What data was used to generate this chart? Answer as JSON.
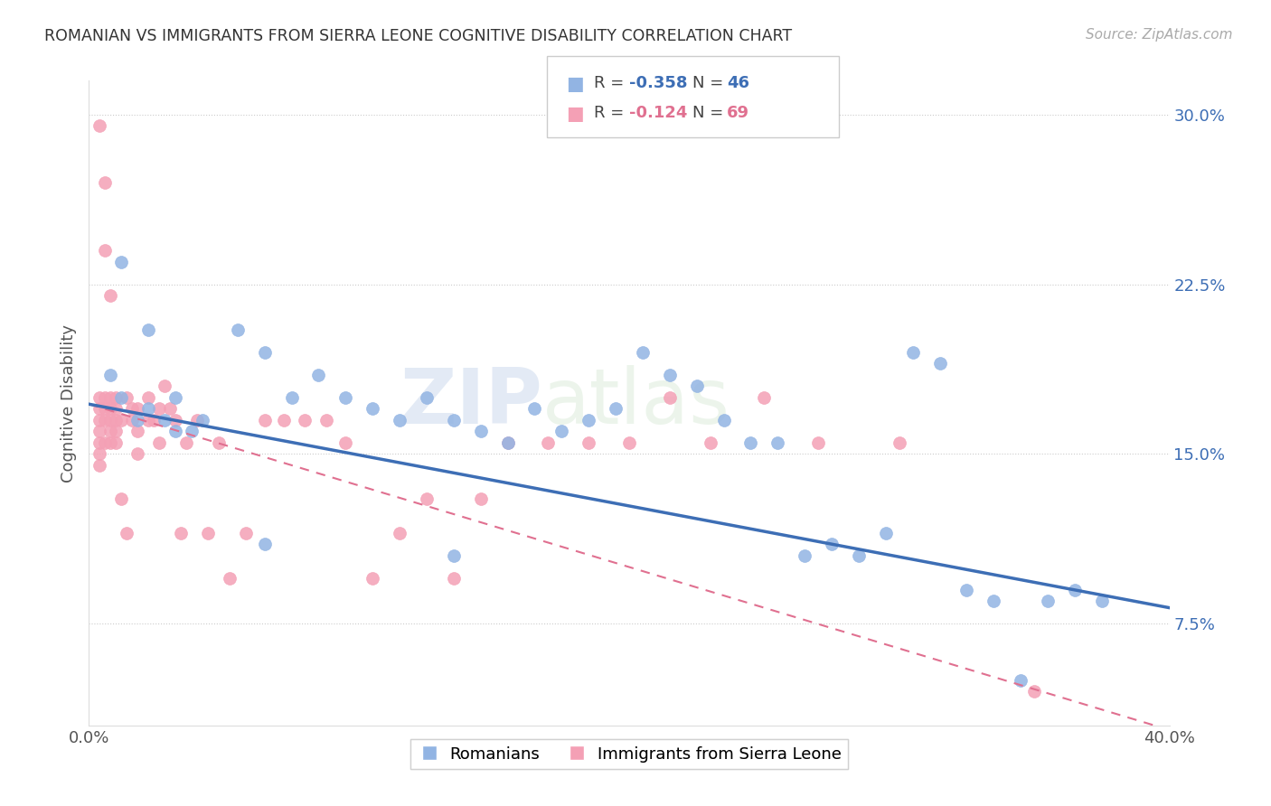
{
  "title": "ROMANIAN VS IMMIGRANTS FROM SIERRA LEONE COGNITIVE DISABILITY CORRELATION CHART",
  "source": "Source: ZipAtlas.com",
  "ylabel": "Cognitive Disability",
  "xlim": [
    0.0,
    0.4
  ],
  "ylim": [
    0.03,
    0.315
  ],
  "yticks": [
    0.075,
    0.15,
    0.225,
    0.3
  ],
  "ytick_labels": [
    "7.5%",
    "15.0%",
    "22.5%",
    "30.0%"
  ],
  "xticks": [
    0.0,
    0.08,
    0.16,
    0.24,
    0.32,
    0.4
  ],
  "blue_color": "#92b4e3",
  "pink_color": "#f4a0b5",
  "blue_line_color": "#3d6eb5",
  "pink_line_color": "#e07090",
  "watermark_zip": "ZIP",
  "watermark_atlas": "atlas",
  "blue_scatter_x": [
    0.008,
    0.012,
    0.018,
    0.022,
    0.028,
    0.032,
    0.038,
    0.042,
    0.055,
    0.065,
    0.075,
    0.085,
    0.095,
    0.105,
    0.115,
    0.125,
    0.135,
    0.145,
    0.155,
    0.165,
    0.175,
    0.185,
    0.195,
    0.205,
    0.215,
    0.225,
    0.235,
    0.245,
    0.255,
    0.265,
    0.275,
    0.285,
    0.295,
    0.305,
    0.315,
    0.325,
    0.335,
    0.345,
    0.355,
    0.365,
    0.375,
    0.012,
    0.022,
    0.032,
    0.065,
    0.135
  ],
  "blue_scatter_y": [
    0.185,
    0.175,
    0.165,
    0.17,
    0.165,
    0.175,
    0.16,
    0.165,
    0.205,
    0.195,
    0.175,
    0.185,
    0.175,
    0.17,
    0.165,
    0.175,
    0.165,
    0.16,
    0.155,
    0.17,
    0.16,
    0.165,
    0.17,
    0.195,
    0.185,
    0.18,
    0.165,
    0.155,
    0.155,
    0.105,
    0.11,
    0.105,
    0.115,
    0.195,
    0.19,
    0.09,
    0.085,
    0.05,
    0.085,
    0.09,
    0.085,
    0.235,
    0.205,
    0.16,
    0.11,
    0.105
  ],
  "pink_scatter_x": [
    0.004,
    0.004,
    0.004,
    0.004,
    0.004,
    0.004,
    0.004,
    0.004,
    0.006,
    0.006,
    0.006,
    0.006,
    0.006,
    0.006,
    0.008,
    0.008,
    0.008,
    0.008,
    0.008,
    0.008,
    0.01,
    0.01,
    0.01,
    0.01,
    0.01,
    0.012,
    0.012,
    0.014,
    0.014,
    0.016,
    0.016,
    0.018,
    0.018,
    0.018,
    0.022,
    0.022,
    0.024,
    0.026,
    0.026,
    0.028,
    0.03,
    0.032,
    0.034,
    0.036,
    0.04,
    0.044,
    0.048,
    0.052,
    0.058,
    0.065,
    0.072,
    0.08,
    0.088,
    0.095,
    0.105,
    0.115,
    0.125,
    0.135,
    0.145,
    0.155,
    0.17,
    0.185,
    0.2,
    0.215,
    0.23,
    0.25,
    0.27,
    0.3,
    0.35
  ],
  "pink_scatter_y": [
    0.295,
    0.175,
    0.17,
    0.165,
    0.16,
    0.155,
    0.15,
    0.145,
    0.27,
    0.24,
    0.175,
    0.17,
    0.165,
    0.155,
    0.22,
    0.175,
    0.17,
    0.165,
    0.16,
    0.155,
    0.175,
    0.17,
    0.165,
    0.16,
    0.155,
    0.165,
    0.13,
    0.175,
    0.115,
    0.17,
    0.165,
    0.17,
    0.16,
    0.15,
    0.175,
    0.165,
    0.165,
    0.17,
    0.155,
    0.18,
    0.17,
    0.165,
    0.115,
    0.155,
    0.165,
    0.115,
    0.155,
    0.095,
    0.115,
    0.165,
    0.165,
    0.165,
    0.165,
    0.155,
    0.095,
    0.115,
    0.13,
    0.095,
    0.13,
    0.155,
    0.155,
    0.155,
    0.155,
    0.175,
    0.155,
    0.175,
    0.155,
    0.155,
    0.045
  ],
  "blue_line_x0": 0.0,
  "blue_line_y0": 0.172,
  "blue_line_x1": 0.4,
  "blue_line_y1": 0.082,
  "pink_line_x0": 0.0,
  "pink_line_y0": 0.172,
  "pink_line_x1": 0.4,
  "pink_line_y1": 0.028
}
